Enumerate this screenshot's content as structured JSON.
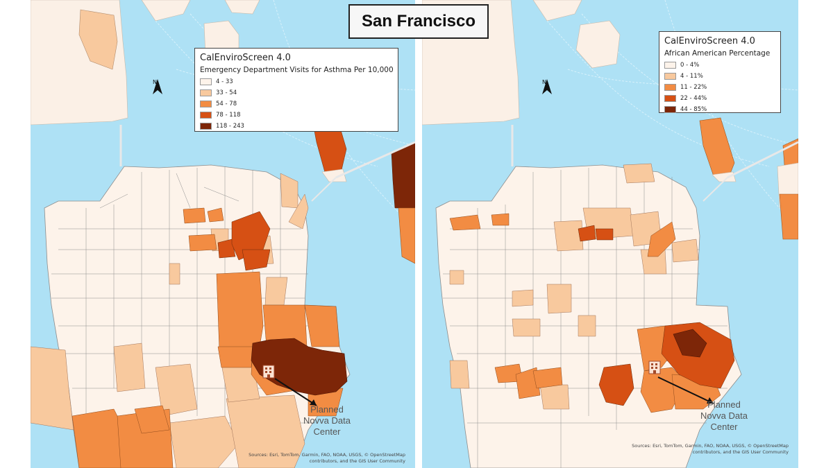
{
  "title": "San Francisco",
  "maps": [
    {
      "id": "asthma",
      "legend": {
        "title": "CalEnviroScreen 4.0",
        "subtitle": "Emergency Department Visits for Asthma Per 10,000",
        "classes": [
          {
            "label": "4 - 33",
            "color": "#fdf3ea"
          },
          {
            "label": "33 - 54",
            "color": "#f8c99e"
          },
          {
            "label": "54 - 78",
            "color": "#f28c43"
          },
          {
            "label": "78 - 118",
            "color": "#d65014"
          },
          {
            "label": "118 - 243",
            "color": "#7d2608"
          }
        ]
      },
      "north_label": "N",
      "annotation": [
        "Planned",
        "Novva Data",
        "Center"
      ],
      "sources": [
        "Sources: Esri, TomTom, Garmin, FAO, NOAA, USGS, © OpenStreetMap",
        "contributors, and the GIS User Community"
      ]
    },
    {
      "id": "african-american",
      "legend": {
        "title": "CalEnviroScreen 4.0",
        "subtitle": "African American Percentage",
        "classes": [
          {
            "label": "0 - 4%",
            "color": "#fdf3ea"
          },
          {
            "label": "4 - 11%",
            "color": "#f8c99e"
          },
          {
            "label": "11 - 22%",
            "color": "#f28c43"
          },
          {
            "label": "22 - 44%",
            "color": "#d65014"
          },
          {
            "label": "44 - 85%",
            "color": "#7d2608"
          }
        ]
      },
      "north_label": "N",
      "annotation": [
        "Planned",
        "Novva Data",
        "Center"
      ],
      "sources": [
        "Sources: Esri, TomTom, Garmin, FAO, NOAA, USGS, © OpenStreetMap",
        "contributors, and the GIS User Community"
      ]
    }
  ],
  "colors": {
    "water": "#aee1f5",
    "land": "#fbf0e6",
    "class1": "#fdf3ea",
    "class2": "#f8c99e",
    "class3": "#f28c43",
    "class4": "#d65014",
    "class5": "#7d2608"
  }
}
